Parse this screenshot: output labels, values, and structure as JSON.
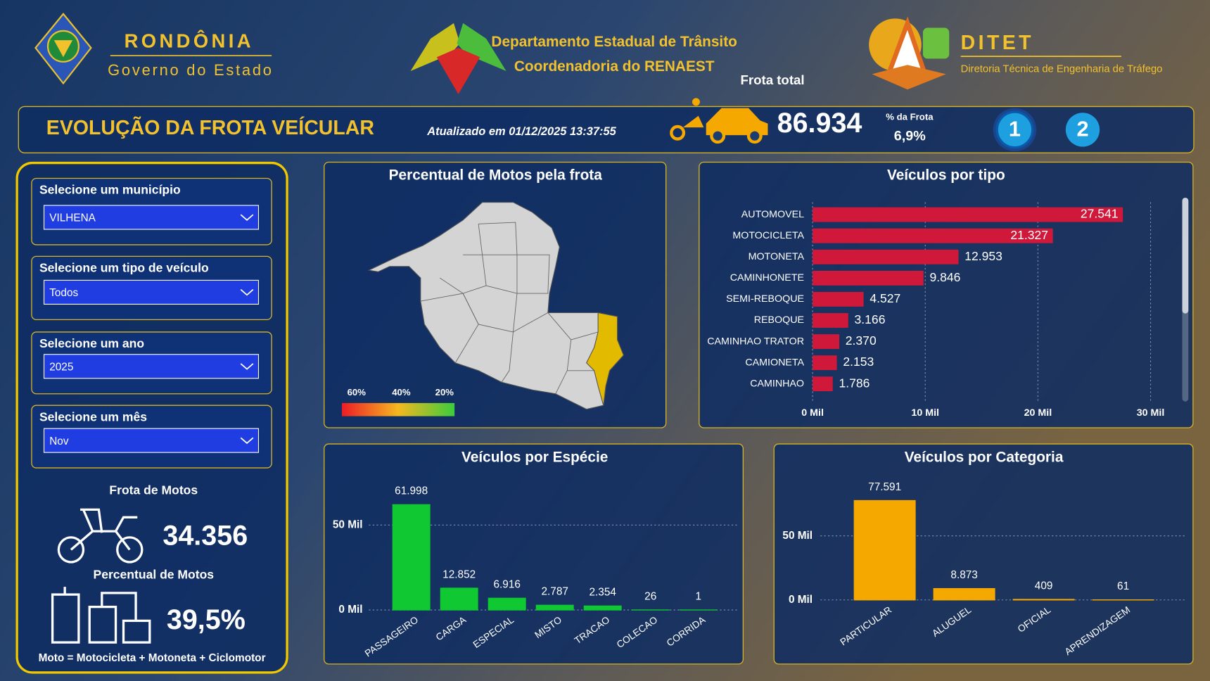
{
  "header": {
    "state": "RONDÔNIA",
    "government": "Governo do Estado",
    "department": "Departamento Estadual de Trânsito",
    "coordination": "Coordenadoria do RENAEST",
    "ditet": "DITET",
    "ditet_subtitle": "Diretoria Técnica de Engenharia de Tráfego"
  },
  "banner": {
    "title": "EVOLUÇÃO DA FROTA VEÍCULAR",
    "updated": "Atualizado em 01/12/2025 13:37:55",
    "total_label": "Frota total",
    "total": "86.934",
    "share_label": "% da Frota",
    "share": "6,9%",
    "pages": [
      "1",
      "2"
    ]
  },
  "filters": [
    {
      "label": "Selecione um município",
      "value": "VILHENA"
    },
    {
      "label": "Selecione um tipo de veículo",
      "value": "Todos"
    },
    {
      "label": "Selecione um ano",
      "value": "2025"
    },
    {
      "label": "Selecione um mês",
      "value": "Nov"
    }
  ],
  "moto_kpis": {
    "fleet_label": "Frota de Motos",
    "fleet": "34.356",
    "share_label": "Percentual de Motos",
    "share": "39,5%",
    "note": "Moto = Motocicleta + Motoneta + Ciclomotor"
  },
  "map": {
    "title": "Percentual de Motos pela frota",
    "legend": [
      "60%",
      "40%",
      "20%"
    ]
  },
  "chart_data": [
    {
      "type": "barh",
      "title": "Veículos por tipo",
      "categories": [
        "AUTOMOVEL",
        "MOTOCICLETA",
        "MOTONETA",
        "CAMINHONETE",
        "SEMI-REBOQUE",
        "REBOQUE",
        "CAMINHAO TRATOR",
        "CAMIONETA",
        "CAMINHAO"
      ],
      "values": [
        27541,
        21327,
        12953,
        9846,
        4527,
        3166,
        2370,
        2153,
        1786
      ],
      "value_labels": [
        "27.541",
        "21.327",
        "12.953",
        "9.846",
        "4.527",
        "3.166",
        "2.370",
        "2.153",
        "1.786"
      ],
      "color": "#d0193a",
      "xlim": [
        0,
        30000
      ],
      "xticks": [
        {
          "value": 0,
          "label": "0 Mil"
        },
        {
          "value": 10000,
          "label": "10 Mil"
        },
        {
          "value": 20000,
          "label": "20 Mil"
        },
        {
          "value": 30000,
          "label": "30 Mil"
        }
      ],
      "grid": true
    },
    {
      "type": "bar",
      "title": "Veículos por Espécie",
      "categories": [
        "PASSAGEIRO",
        "CARGA",
        "ESPECIAL",
        "MISTO",
        "TRACAO",
        "COLECAO",
        "CORRIDA"
      ],
      "values": [
        61998,
        12852,
        6916,
        2787,
        2354,
        26,
        1
      ],
      "value_labels": [
        "61.998",
        "12.852",
        "6.916",
        "2.787",
        "2.354",
        "26",
        "1"
      ],
      "color": "#10c832",
      "ylim": [
        0,
        65000
      ],
      "yticks": [
        {
          "value": 0,
          "label": "0 Mil"
        },
        {
          "value": 50000,
          "label": "50 Mil"
        }
      ],
      "grid": true
    },
    {
      "type": "bar",
      "title": "Veículos por Categoria",
      "categories": [
        "PARTICULAR",
        "ALUGUEL",
        "OFICIAL",
        "APRENDIZAGEM"
      ],
      "values": [
        77591,
        8873,
        409,
        61
      ],
      "value_labels": [
        "77.591",
        "8.873",
        "409",
        "61"
      ],
      "color": "#f5a800",
      "ylim": [
        0,
        85000
      ],
      "yticks": [
        {
          "value": 0,
          "label": "0 Mil"
        },
        {
          "value": 50000,
          "label": "50 Mil"
        }
      ],
      "grid": true
    }
  ]
}
